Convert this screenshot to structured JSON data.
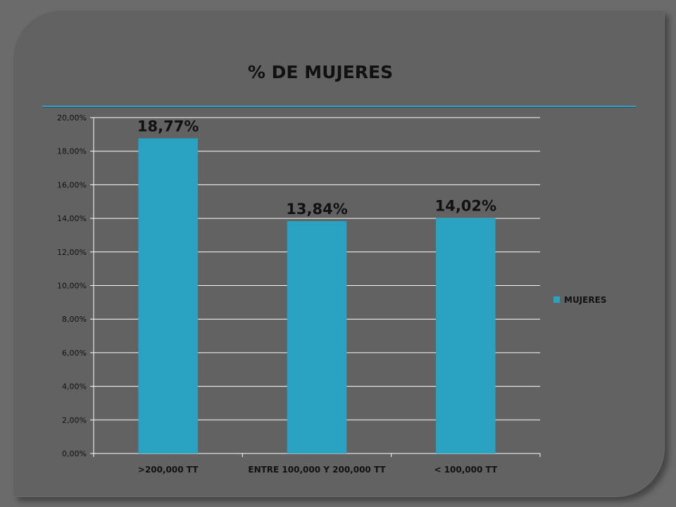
{
  "chart_data": {
    "type": "bar",
    "title": "% DE MUJERES",
    "categories": [
      ">200,000 TT",
      "ENTRE 100,000 Y 200,000 TT",
      "< 100,000 TT"
    ],
    "series": [
      {
        "name": "MUJERES",
        "values": [
          18.77,
          13.84,
          14.02
        ],
        "color": "#2aa2c1"
      }
    ],
    "data_labels": [
      "18,77%",
      "13,84%",
      "14,02%"
    ],
    "ylim": [
      0,
      20
    ],
    "yticks": [
      0,
      2,
      4,
      6,
      8,
      10,
      12,
      14,
      16,
      18,
      20
    ],
    "ytick_labels": [
      "0,00%",
      "2,00%",
      "4,00%",
      "6,00%",
      "8,00%",
      "10,00%",
      "12,00%",
      "14,00%",
      "16,00%",
      "18,00%",
      "20,00%"
    ],
    "grid": true,
    "legend_position": "right"
  },
  "colors": {
    "background": "#6b6b6b",
    "panel": "#626262",
    "bar": "#2aa2c1",
    "gridline": "#ffffff",
    "title_rule": "#2aa2c1"
  }
}
